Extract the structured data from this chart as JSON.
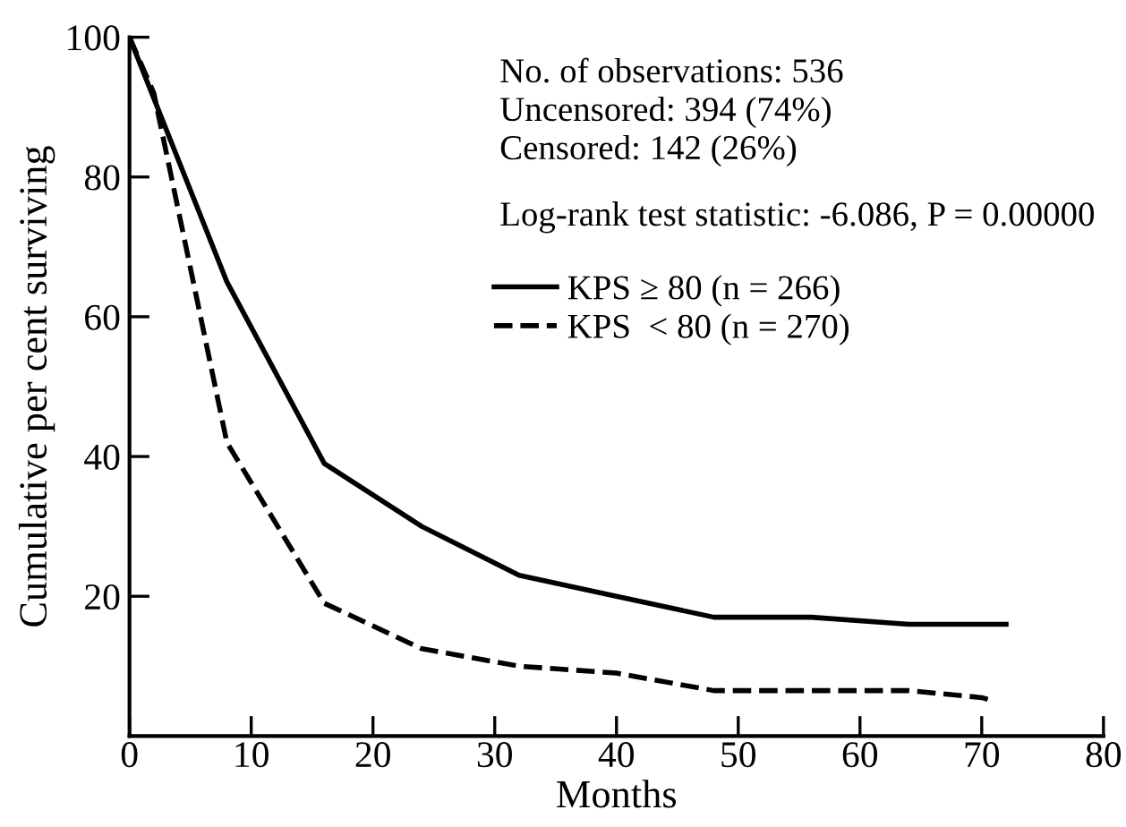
{
  "chart_data": {
    "type": "line",
    "xlabel": "Months",
    "ylabel": "Cumulative per cent surviving",
    "xlim": [
      0,
      80
    ],
    "ylim": [
      0,
      100
    ],
    "xticks": [
      0,
      10,
      20,
      30,
      40,
      50,
      60,
      70,
      80
    ],
    "yticks": [
      20,
      40,
      60,
      80,
      100
    ],
    "grid": false,
    "legend": "top",
    "marker": "none",
    "series": [
      {
        "name": "KPS ≥ 80 (n = 266)",
        "color": "#000000",
        "line_style": "solid",
        "x": [
          0,
          8,
          16,
          24,
          32,
          40,
          48,
          56,
          64,
          72
        ],
        "values": [
          100,
          65,
          39,
          30,
          23,
          20,
          17,
          17,
          16,
          16
        ]
      },
      {
        "name": "KPS  < 80 (n = 270)",
        "color": "#000000",
        "line_style": "dashed",
        "x": [
          0,
          2,
          8,
          16,
          24,
          32,
          40,
          48,
          56,
          64,
          70,
          71
        ],
        "values": [
          100,
          92,
          42,
          19,
          12.5,
          10,
          9,
          6.5,
          6.5,
          6.5,
          5.5,
          5
        ]
      }
    ],
    "annotations": [
      "No. of observations: 536",
      "Uncensored: 394 (74%)",
      "Censored: 142 (26%)",
      "Log-rank test statistic: -6.086, P = 0.00000"
    ]
  }
}
